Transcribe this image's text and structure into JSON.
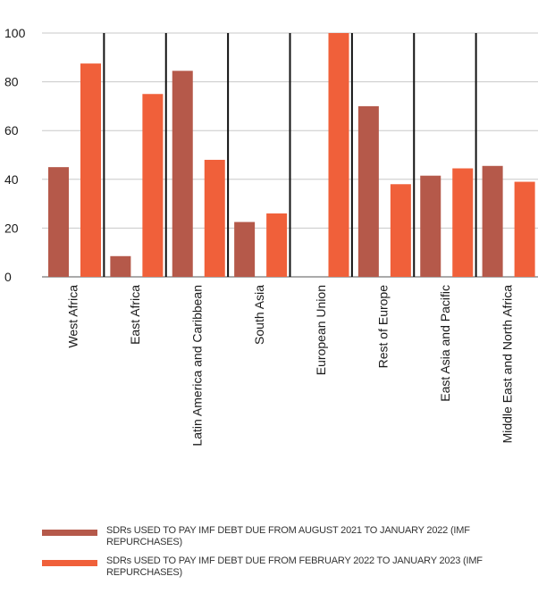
{
  "chart_data": {
    "type": "bar",
    "title": "",
    "xlabel": "",
    "ylabel": "",
    "ylim": [
      0,
      100
    ],
    "yticks": [
      0,
      20,
      40,
      60,
      80,
      100
    ],
    "grid": "horizontal",
    "legend_position": "bottom",
    "categories": [
      "West Africa",
      "East Africa",
      "Latin America and Caribbean",
      "South Asia",
      "European Union",
      "Rest of Europe",
      "East Asia and Pacific",
      "Middle East and North Africa"
    ],
    "series": [
      {
        "name": "SDRs USED TO PAY IMF DEBT DUE FROM AUGUST 2021 TO JANUARY 2022 (IMF REPURCHASES)",
        "color": "#b5594a",
        "values": [
          45,
          8.5,
          84.5,
          22.5,
          0,
          70,
          41.5,
          45.5
        ]
      },
      {
        "name": "SDRs USED TO PAY IMF DEBT DUE FROM FEBRUARY 2022 TO JANUARY 2023 (IMF REPURCHASES)",
        "color": "#f0603a",
        "values": [
          87.5,
          75,
          48,
          26,
          100,
          38,
          44.5,
          39
        ]
      }
    ]
  }
}
